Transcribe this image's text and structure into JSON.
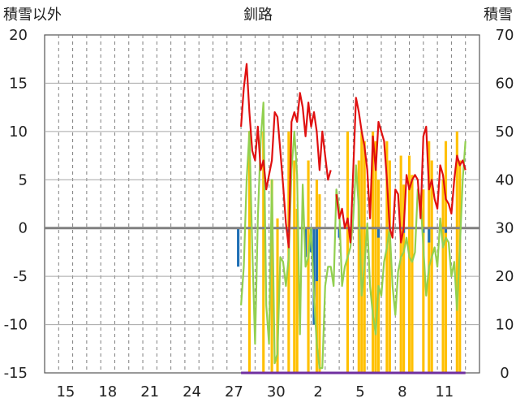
{
  "chart_data": {
    "type": "line",
    "title": "釧路",
    "left_axis_label": "積雪以外",
    "right_axis_label": "積雪",
    "left_ylim": [
      -15,
      20
    ],
    "right_ylim": [
      0,
      70
    ],
    "left_yticks": [
      "20",
      "15",
      "10",
      "5",
      "0",
      "-5",
      "-10",
      "-15"
    ],
    "right_yticks": [
      "70",
      "60",
      "50",
      "40",
      "30",
      "20",
      "10",
      "0"
    ],
    "x_tick_labels": [
      "15",
      "18",
      "21",
      "24",
      "27",
      "30",
      "2",
      "5",
      "8",
      "11"
    ],
    "x_tick_day_index": [
      2,
      5,
      8,
      11,
      14,
      17,
      20,
      23,
      26,
      29
    ],
    "x_days_total": 31,
    "grid": true,
    "series": [
      {
        "role": "temperature-high",
        "color": "#e01010",
        "x": [
          14.0,
          14.2,
          14.4,
          14.6,
          14.8,
          15.0,
          15.2,
          15.4,
          15.6,
          15.8,
          16.0,
          16.2,
          16.4,
          16.6,
          16.8,
          17.0,
          17.2,
          17.4,
          17.6,
          17.8,
          18.0,
          18.2,
          18.4,
          18.6,
          18.8,
          19.0,
          19.2,
          19.4,
          19.6,
          19.8,
          20.0,
          20.2,
          20.4,
          20.6,
          20.8,
          21.0,
          21.2,
          21.4,
          21.6,
          21.8,
          22.0,
          22.2,
          22.4,
          22.6,
          22.8,
          23.0,
          23.2,
          23.4,
          23.6,
          23.8,
          24.0,
          24.2,
          24.4,
          24.6,
          24.8,
          25.0,
          25.2,
          25.4,
          25.6,
          25.8,
          26.0,
          26.2,
          26.4,
          26.6,
          26.8,
          27.0,
          27.2,
          27.4,
          27.6,
          27.8,
          28.0,
          28.2,
          28.4,
          28.6,
          28.8,
          29.0,
          29.2,
          29.4,
          29.6,
          29.8,
          30.0
        ],
        "values": [
          10.5,
          14.5,
          17.0,
          12.0,
          8.0,
          7.0,
          10.5,
          6.0,
          7.0,
          4.0,
          5.5,
          7.0,
          12.0,
          11.5,
          8.0,
          4.5,
          0.5,
          -2.0,
          11.0,
          12.0,
          11.0,
          14.0,
          12.5,
          9.5,
          13.0,
          10.5,
          12.0,
          10.0,
          6.0,
          10.0,
          7.5,
          5.0,
          6.0,
          null,
          3.5,
          1.0,
          2.0,
          0.0,
          1.0,
          -1.5,
          6.0,
          13.5,
          12.0,
          10.0,
          8.5,
          6.0,
          1.0,
          9.5,
          6.0,
          11.0,
          10.0,
          9.0,
          5.0,
          0.0,
          -1.0,
          4.0,
          3.5,
          -1.5,
          0.0,
          5.5,
          4.0,
          5.0,
          5.5,
          5.0,
          1.0,
          9.5,
          10.5,
          4.0,
          5.0,
          3.0,
          2.0,
          6.5,
          5.5,
          3.0,
          2.5,
          1.5,
          5.0,
          7.5,
          6.5,
          7.0,
          6.0
        ]
      },
      {
        "role": "temperature-low",
        "color": "#92d050",
        "x": [
          14.0,
          14.2,
          14.4,
          14.6,
          14.8,
          15.0,
          15.2,
          15.4,
          15.6,
          15.8,
          16.0,
          16.2,
          16.4,
          16.6,
          16.8,
          17.0,
          17.2,
          17.4,
          17.6,
          17.8,
          18.0,
          18.2,
          18.4,
          18.6,
          18.8,
          19.0,
          19.2,
          19.4,
          19.6,
          19.8,
          20.0,
          20.2,
          20.4,
          20.6,
          20.8,
          21.0,
          21.2,
          21.4,
          21.6,
          21.8,
          22.0,
          22.2,
          22.4,
          22.6,
          22.8,
          23.0,
          23.2,
          23.4,
          23.6,
          23.8,
          24.0,
          24.2,
          24.4,
          24.6,
          24.8,
          25.0,
          25.2,
          25.4,
          25.6,
          25.8,
          26.0,
          26.2,
          26.4,
          26.6,
          26.8,
          27.0,
          27.2,
          27.4,
          27.6,
          27.8,
          28.0,
          28.2,
          28.4,
          28.6,
          28.8,
          29.0,
          29.2,
          29.4,
          29.6,
          29.8,
          30.0
        ],
        "values": [
          -8.0,
          -4.0,
          5.0,
          10.0,
          -2.0,
          -12.0,
          1.0,
          9.0,
          13.0,
          -8.0,
          -12.0,
          5.0,
          -14.0,
          -13.0,
          -3.0,
          -3.5,
          -6.0,
          -3.0,
          6.0,
          10.0,
          5.5,
          -11.0,
          4.5,
          -4.0,
          -3.0,
          0.0,
          -7.0,
          -12.0,
          -14.5,
          -14.5,
          -6.0,
          -4.0,
          -4.0,
          -6.0,
          4.0,
          2.0,
          -6.0,
          -4.0,
          -3.0,
          -2.0,
          1.0,
          6.5,
          2.0,
          -7.0,
          -4.0,
          0.5,
          -6.0,
          -9.0,
          -11.0,
          -6.0,
          -7.0,
          -3.5,
          -2.0,
          0.0,
          -6.0,
          -9.0,
          -4.5,
          -3.0,
          -2.5,
          -1.0,
          -3.0,
          -3.5,
          -2.5,
          4.0,
          3.0,
          -2.0,
          -7.0,
          -4.0,
          -3.0,
          -2.0,
          -4.0,
          1.0,
          -2.0,
          -1.0,
          -1.5,
          -5.0,
          -3.5,
          -8.5,
          -2.0,
          5.0,
          9.0
        ]
      },
      {
        "role": "snow-depth",
        "color": "#ffc000",
        "axis": "right",
        "x": [
          14.6,
          15.6,
          16.2,
          16.6,
          17.4,
          17.8,
          18.0,
          18.8,
          19.4,
          19.6,
          21.6,
          22.4,
          22.6,
          22.8,
          23.4,
          23.6,
          23.8,
          24.4,
          24.6,
          25.4,
          25.6,
          26.0,
          26.2,
          27.0,
          27.4,
          27.6,
          28.4,
          28.6,
          29.4,
          29.6
        ],
        "values": [
          50,
          50,
          40,
          32,
          50,
          44,
          34,
          44,
          40,
          37,
          50,
          44,
          50,
          48,
          50,
          48,
          40,
          48,
          44,
          45,
          39,
          45,
          41,
          38,
          48,
          44,
          40,
          48,
          50,
          44
        ]
      },
      {
        "role": "precipitation",
        "color": "#1f6fb5",
        "x": [
          13.8,
          17.4,
          18.6,
          19.0,
          19.2,
          19.4,
          21.0,
          21.8,
          23.8,
          25.6,
          27.0,
          27.4,
          28.6
        ],
        "values": [
          -4.0,
          -0.5,
          -3.0,
          -2.5,
          -10.0,
          -5.5,
          -1.0,
          -0.5,
          -1.0,
          -0.5,
          -0.5,
          -1.5,
          -0.5
        ]
      },
      {
        "role": "baseline-purple",
        "color": "#7030a0",
        "axis": "right",
        "x": [
          14.0,
          30.0
        ],
        "values": [
          0,
          0
        ]
      }
    ]
  }
}
